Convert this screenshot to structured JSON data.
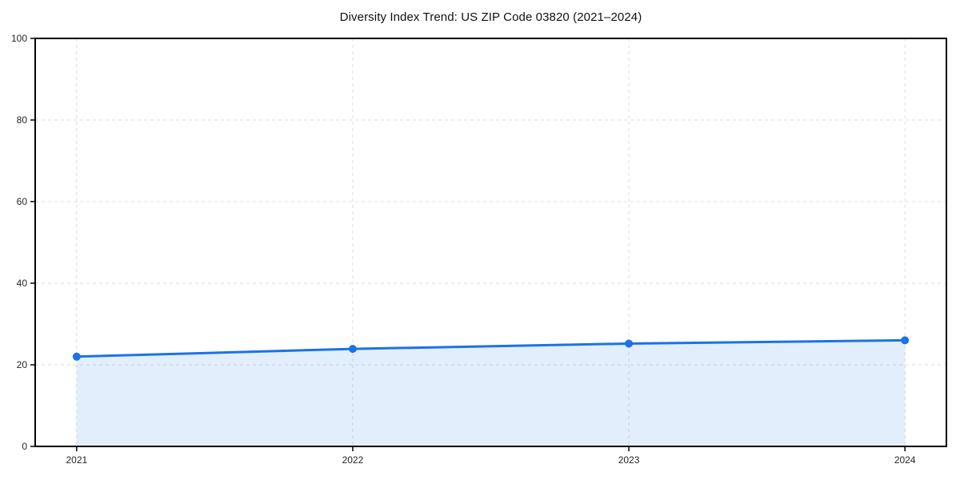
{
  "title": "Diversity Index Trend: US ZIP Code 03820 (2021–2024)",
  "chart_data": {
    "type": "area",
    "title": "Diversity Index Trend: US ZIP Code 03820 (2021–2024)",
    "series_name": "Diversity Index",
    "x": [
      2021,
      2022,
      2023,
      2024
    ],
    "values": [
      22.0,
      23.9,
      25.2,
      26.0
    ],
    "xtick_labels": [
      "2021",
      "2022",
      "2023",
      "2024"
    ],
    "yticks": [
      0,
      20,
      40,
      60,
      80,
      100
    ],
    "ytick_labels": [
      "0",
      "20",
      "40",
      "60",
      "80",
      "100"
    ],
    "xlabel": "",
    "ylabel": "",
    "ylim": [
      0,
      100
    ],
    "grid": "dashed",
    "legend": "none",
    "colors": {
      "line": "#1a73e8",
      "marker": "#1a73e8",
      "fill": "rgba(26,115,232,0.12)",
      "grid": "#dedede",
      "spine": "#000000",
      "tick_label": "#262626",
      "title": "#111111",
      "background": "#ffffff"
    }
  }
}
